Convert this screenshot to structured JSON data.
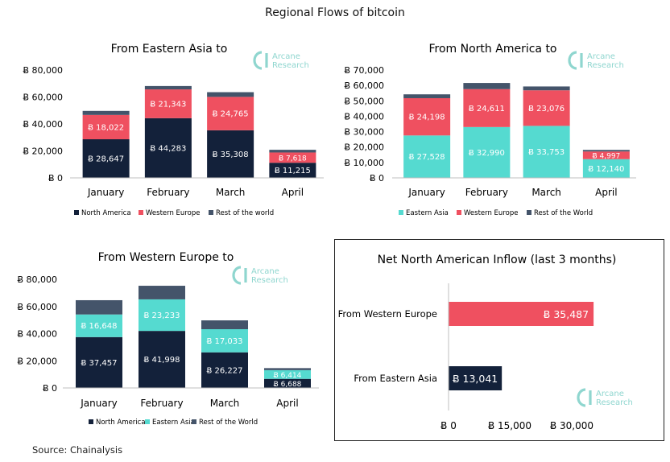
{
  "title": "Regional Flows of bitcoin",
  "source": "Source: Chainalysis",
  "watermark": {
    "line1": "Arcane",
    "line2": "Research",
    "color": "#8fd6cf"
  },
  "colors": {
    "navy": "#13213a",
    "red": "#ef5060",
    "teal": "#55dad0",
    "slate": "#44546a",
    "axis": "#bfbfbf"
  },
  "chart_data": [
    {
      "type": "bar",
      "stacked": true,
      "title": "From Eastern Asia to",
      "categories": [
        "January",
        "February",
        "March",
        "April"
      ],
      "ylim": [
        0,
        80000
      ],
      "yticks": [
        0,
        20000,
        40000,
        60000,
        80000
      ],
      "yticklabels": [
        "Ƀ 0",
        "Ƀ 20,000",
        "Ƀ 40,000",
        "Ƀ 60,000",
        "Ƀ 80,000"
      ],
      "series": [
        {
          "name": "North America",
          "color": "#13213a",
          "values": [
            28647,
            44283,
            35308,
            11215
          ],
          "labels": [
            "Ƀ 28,647",
            "Ƀ 44,283",
            "Ƀ 35,308",
            "Ƀ 11,215"
          ]
        },
        {
          "name": "Western Europe",
          "color": "#ef5060",
          "values": [
            18022,
            21343,
            24765,
            7618
          ],
          "labels": [
            "Ƀ 18,022",
            "Ƀ 21,343",
            "Ƀ 24,765",
            "Ƀ 7,618"
          ]
        },
        {
          "name": "Rest of the world",
          "color": "#44546a",
          "values": [
            3000,
            2500,
            3500,
            2000
          ],
          "labels": [
            "",
            "",
            "",
            ""
          ]
        }
      ],
      "legend": "bottom"
    },
    {
      "type": "bar",
      "stacked": true,
      "title": "From North America to",
      "categories": [
        "January",
        "February",
        "March",
        "April"
      ],
      "ylim": [
        0,
        70000
      ],
      "yticks": [
        0,
        10000,
        20000,
        30000,
        40000,
        50000,
        60000,
        70000
      ],
      "yticklabels": [
        "Ƀ 0",
        "Ƀ 10,000",
        "Ƀ 20,000",
        "Ƀ 30,000",
        "Ƀ 40,000",
        "Ƀ 50,000",
        "Ƀ 60,000",
        "Ƀ 70,000"
      ],
      "series": [
        {
          "name": "Eastern Asia",
          "color": "#55dad0",
          "values": [
            27528,
            32990,
            33753,
            12140
          ],
          "labels": [
            "Ƀ 27,528",
            "Ƀ 32,990",
            "Ƀ 33,753",
            "Ƀ 12,140"
          ]
        },
        {
          "name": "Western Europe",
          "color": "#ef5060",
          "values": [
            24198,
            24611,
            23076,
            4997
          ],
          "labels": [
            "Ƀ 24,198",
            "Ƀ 24,611",
            "Ƀ 23,076",
            "Ƀ 4,997"
          ]
        },
        {
          "name": "Rest of the World",
          "color": "#44546a",
          "values": [
            2500,
            4000,
            2500,
            1000
          ],
          "labels": [
            "",
            "",
            "",
            ""
          ]
        }
      ],
      "legend": "bottom"
    },
    {
      "type": "bar",
      "stacked": true,
      "title": "From Western Europe to",
      "categories": [
        "January",
        "February",
        "March",
        "April"
      ],
      "ylim": [
        0,
        80000
      ],
      "yticks": [
        0,
        20000,
        40000,
        60000,
        80000
      ],
      "yticklabels": [
        "Ƀ 0",
        "Ƀ 20,000",
        "Ƀ 40,000",
        "Ƀ 60,000",
        "Ƀ 80,000"
      ],
      "series": [
        {
          "name": "North America",
          "color": "#13213a",
          "values": [
            37457,
            41998,
            26227,
            6688
          ],
          "labels": [
            "Ƀ 37,457",
            "Ƀ 41,998",
            "Ƀ 26,227",
            "Ƀ 6,688"
          ]
        },
        {
          "name": "Eastern Asia",
          "color": "#55dad0",
          "values": [
            16648,
            23233,
            17033,
            6414
          ],
          "labels": [
            "Ƀ 16,648",
            "Ƀ 23,233",
            "Ƀ 17,033",
            "Ƀ 6,414"
          ]
        },
        {
          "name": "Rest of the World",
          "color": "#44546a",
          "values": [
            10500,
            10000,
            6500,
            1500
          ],
          "labels": [
            "",
            "",
            "",
            ""
          ]
        }
      ],
      "legend": "bottom"
    },
    {
      "type": "bar",
      "orientation": "horizontal",
      "title": "Net North American Inflow (last 3 months)",
      "categories": [
        "From Western Europe",
        "From Eastern Asia"
      ],
      "values": [
        35487,
        13041
      ],
      "valuelabels": [
        "Ƀ 35,487",
        "Ƀ 13,041"
      ],
      "colors": [
        "#ef5060",
        "#13213a"
      ],
      "xlim": [
        0,
        40000
      ],
      "xticks": [
        0,
        15000,
        30000
      ],
      "xticklabels": [
        "Ƀ 0",
        "Ƀ 15,000",
        "Ƀ 30,000"
      ]
    }
  ]
}
